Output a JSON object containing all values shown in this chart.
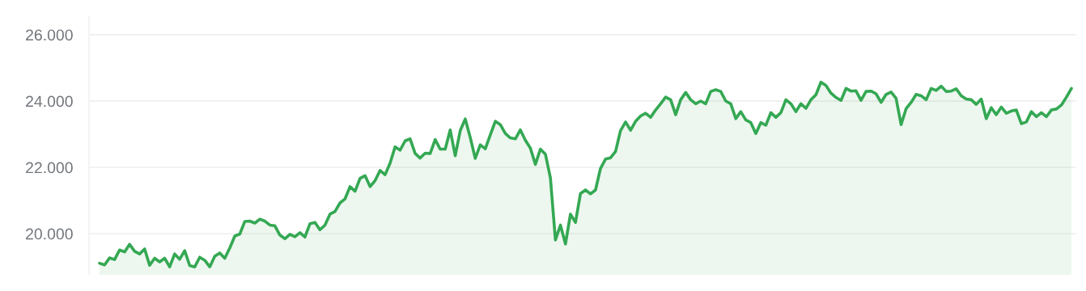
{
  "chart_data": {
    "type": "area",
    "categories": [
      null,
      null,
      null,
      null,
      null,
      null,
      null,
      null,
      null,
      null,
      null,
      null,
      null,
      null,
      null,
      null,
      null,
      null,
      null,
      null,
      null,
      null,
      null,
      null,
      null,
      null,
      null,
      null,
      null,
      null,
      null,
      null,
      null,
      null,
      null,
      null,
      null,
      null,
      null,
      null,
      null,
      null,
      null,
      null,
      null,
      null,
      null,
      null,
      null,
      null,
      null,
      null,
      null,
      null,
      null,
      null,
      null,
      null,
      null,
      null,
      null,
      null,
      null,
      null,
      null,
      null,
      null,
      null,
      null,
      null,
      null,
      null,
      null,
      null,
      null,
      null,
      null,
      null,
      null,
      null,
      null,
      null,
      null,
      null,
      null,
      null,
      null,
      null,
      null,
      null,
      null,
      null,
      null,
      null,
      null,
      null,
      null,
      null,
      null,
      null,
      null,
      null,
      null,
      null,
      null,
      null,
      null,
      null,
      null,
      null,
      null,
      null,
      null,
      null,
      null,
      null,
      null,
      null,
      null,
      null,
      null,
      null,
      null,
      null,
      null,
      null,
      null,
      null,
      null,
      null,
      null,
      null,
      null,
      null,
      null,
      null,
      null,
      null,
      null,
      null,
      null,
      null,
      null,
      null,
      null,
      null,
      null,
      null,
      null,
      null,
      null,
      null,
      null,
      null,
      null,
      null,
      null,
      null,
      null,
      null,
      null,
      null,
      null,
      null,
      null,
      null,
      null,
      null,
      null,
      null,
      null,
      null,
      null,
      null,
      null,
      null,
      null,
      null,
      null,
      null,
      null,
      null,
      null,
      null,
      null,
      null,
      null,
      null,
      null,
      null,
      null,
      null,
      null,
      null,
      null
    ],
    "series": [
      {
        "color": "#34a853",
        "values": [
          19110,
          19060,
          19270,
          19220,
          19510,
          19450,
          19680,
          19470,
          19390,
          19540,
          19050,
          19260,
          19150,
          19260,
          19000,
          19390,
          19230,
          19490,
          19040,
          19000,
          19290,
          19200,
          19000,
          19320,
          19420,
          19260,
          19570,
          19930,
          19990,
          20370,
          20380,
          20320,
          20440,
          20380,
          20260,
          20240,
          19960,
          19850,
          19980,
          19910,
          20030,
          19900,
          20300,
          20340,
          20120,
          20260,
          20590,
          20670,
          20930,
          21050,
          21420,
          21280,
          21670,
          21750,
          21420,
          21600,
          21910,
          21780,
          22130,
          22620,
          22520,
          22800,
          22860,
          22420,
          22280,
          22430,
          22420,
          22840,
          22550,
          22550,
          23130,
          22350,
          23110,
          23460,
          22900,
          22270,
          22680,
          22560,
          22980,
          23390,
          23290,
          23020,
          22890,
          22860,
          23130,
          22820,
          22580,
          22090,
          22550,
          22400,
          21680,
          19810,
          20260,
          19690,
          20590,
          20340,
          21210,
          21320,
          21200,
          21320,
          21970,
          22250,
          22290,
          22480,
          23110,
          23370,
          23120,
          23390,
          23550,
          23630,
          23510,
          23730,
          23920,
          24120,
          24040,
          23590,
          24040,
          24260,
          24040,
          23920,
          24000,
          23920,
          24290,
          24340,
          24290,
          24000,
          23920,
          23470,
          23680,
          23430,
          23350,
          23020,
          23350,
          23270,
          23650,
          23510,
          23650,
          24040,
          23920,
          23680,
          23920,
          23780,
          24040,
          24190,
          24570,
          24470,
          24240,
          24110,
          24020,
          24380,
          24300,
          24310,
          24020,
          24290,
          24300,
          24220,
          23960,
          24200,
          24270,
          24080,
          23290,
          23770,
          23960,
          24200,
          24160,
          24040,
          24380,
          24320,
          24450,
          24290,
          24300,
          24370,
          24160,
          24060,
          24040,
          23900,
          24060,
          23470,
          23800,
          23590,
          23820,
          23630,
          23700,
          23730,
          23320,
          23370,
          23680,
          23530,
          23650,
          23530,
          23730,
          23760,
          23880,
          24120,
          24380
        ]
      }
    ],
    "ylim": [
      18760,
      26560
    ],
    "yticks": [
      {
        "value": 20000,
        "label": "20.000"
      },
      {
        "value": 22000,
        "label": "22.000"
      },
      {
        "value": 24000,
        "label": "24.000"
      },
      {
        "value": 26000,
        "label": "26.000"
      }
    ],
    "grid": "y",
    "tick_labels": "y"
  }
}
